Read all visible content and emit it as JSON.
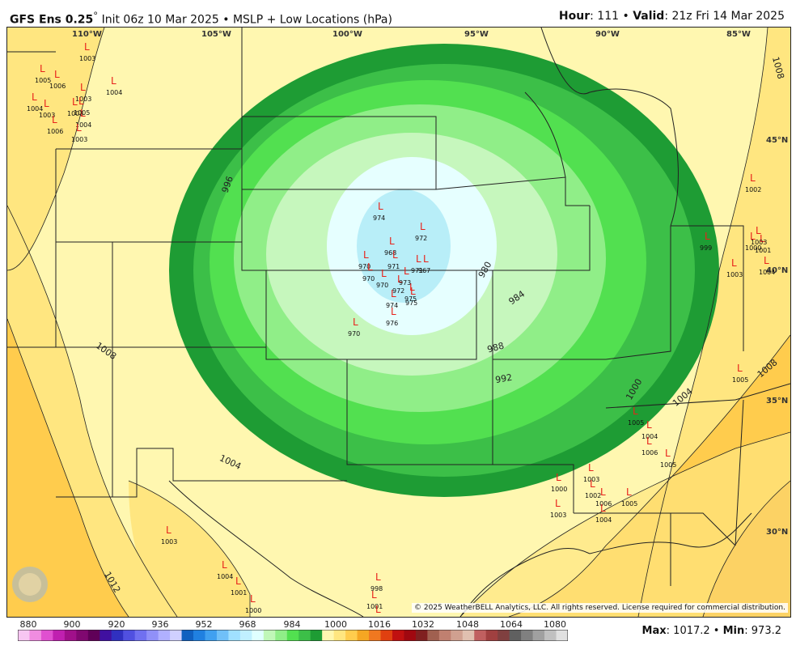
{
  "header": {
    "model": "GFS Ens 0.25",
    "init": "Init 06z 10 Mar 2025",
    "sep": "•",
    "product": "MSLP + Low Locations (hPa)",
    "hour_label": "Hour",
    "hour_value": ": 111",
    "valid_label": "Valid",
    "valid_value": ": 21z Fri 14 Mar 2025"
  },
  "map": {
    "longitude_labels": [
      "110°W",
      "105°W",
      "100°W",
      "95°W",
      "90°W",
      "85°W"
    ],
    "latitude_labels": [
      "45°N",
      "40°N",
      "35°N",
      "30°N"
    ],
    "contour_labels": [
      "996",
      "1008",
      "1004",
      "1012",
      "980",
      "984",
      "988",
      "992",
      "1000",
      "1004",
      "1008",
      "1008"
    ],
    "low_marker": "L",
    "low_values": [
      "1003",
      "1005",
      "1006",
      "1003",
      "1004",
      "1004",
      "1003",
      "1003",
      "1004",
      "1006",
      "1003",
      "1005",
      "974",
      "972",
      "968",
      "971",
      "970",
      "970",
      "970",
      "971",
      "972",
      "974",
      "975",
      "976",
      "970",
      "967",
      "975",
      "973",
      "1002",
      "1001",
      "1003",
      "1004",
      "1000",
      "999",
      "1003",
      "1005",
      "1005",
      "1004",
      "1006",
      "1005",
      "1003",
      "1002",
      "1006",
      "1004",
      "1005",
      "1000",
      "1003",
      "1003",
      "1004",
      "1001",
      "1000",
      "998",
      "1001",
      "1000",
      "999",
      "998"
    ],
    "colors": {
      "land_light": "#fff7b0",
      "yellow": "#ffe680",
      "orange": "#ffcc4d",
      "dark_orange": "#f5a623",
      "green1": "#1e9c34",
      "green2": "#3cbf48",
      "green3": "#6ee06a",
      "green4": "#a8f0a0",
      "green5": "#d6fcd0",
      "cyan1": "#e6ffff",
      "cyan2": "#b8eef8",
      "low_red": "#e8221b"
    }
  },
  "colorbar": {
    "ticks": [
      "880",
      "900",
      "920",
      "936",
      "952",
      "968",
      "984",
      "1000",
      "1016",
      "1032",
      "1048",
      "1064",
      "1080"
    ]
  },
  "stats": {
    "max_label": "Max",
    "max_value": ": 1017.2",
    "sep": "•",
    "min_label": "Min",
    "min_value": ": 973.2"
  },
  "copyright": "© 2025 WeatherBELL Analytics, LLC. All rights reserved. License required for commercial distribution."
}
